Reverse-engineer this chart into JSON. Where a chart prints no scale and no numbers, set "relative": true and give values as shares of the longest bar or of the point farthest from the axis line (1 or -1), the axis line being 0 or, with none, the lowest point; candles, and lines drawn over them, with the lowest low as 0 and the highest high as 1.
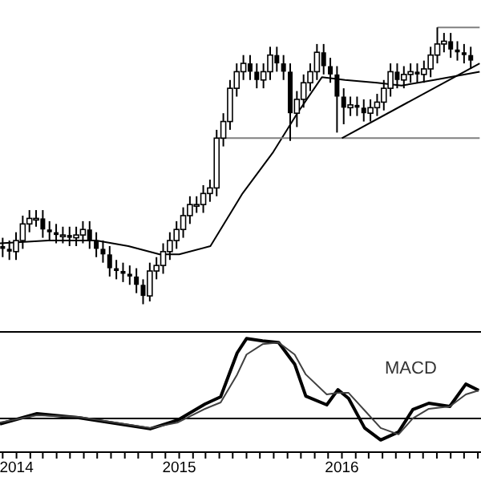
{
  "chart_data": [
    {
      "type": "candlestick",
      "relative": true,
      "color": "#000000",
      "tick_labels": false,
      "xlim": [
        "2013-11-25",
        "2016-11-08"
      ],
      "x": [
        "2013-12-01",
        "2013-12-16",
        "2013-12-31",
        "2014-01-15",
        "2014-01-30",
        "2014-02-14",
        "2014-03-01",
        "2014-03-16",
        "2014-03-31",
        "2014-04-15",
        "2014-04-30",
        "2014-05-15",
        "2014-05-30",
        "2014-06-14",
        "2014-06-29",
        "2014-07-14",
        "2014-07-29",
        "2014-08-13",
        "2014-08-28",
        "2014-09-12",
        "2014-09-27",
        "2014-10-12",
        "2014-10-27",
        "2014-11-11",
        "2014-11-26",
        "2014-12-11",
        "2014-12-26",
        "2015-01-10",
        "2015-01-25",
        "2015-02-09",
        "2015-02-24",
        "2015-03-11",
        "2015-03-26",
        "2015-04-10",
        "2015-04-25",
        "2015-05-10",
        "2015-05-25",
        "2015-06-09",
        "2015-06-24",
        "2015-07-09",
        "2015-07-24",
        "2015-08-08",
        "2015-08-23",
        "2015-09-07",
        "2015-09-22",
        "2015-10-07",
        "2015-10-22",
        "2015-11-06",
        "2015-11-21",
        "2015-12-06",
        "2015-12-21",
        "2016-01-05",
        "2016-01-20",
        "2016-02-04",
        "2016-02-19",
        "2016-03-05",
        "2016-03-20",
        "2016-04-04",
        "2016-04-19",
        "2016-05-04",
        "2016-05-19",
        "2016-06-03",
        "2016-06-18",
        "2016-07-03",
        "2016-07-18",
        "2016-08-02",
        "2016-08-17",
        "2016-09-01",
        "2016-09-16",
        "2016-10-01",
        "2016-10-16"
      ],
      "ohlc": [
        [
          0.21,
          0.24,
          0.17,
          0.2
        ],
        [
          0.2,
          0.23,
          0.16,
          0.19
        ],
        [
          0.19,
          0.26,
          0.16,
          0.23
        ],
        [
          0.23,
          0.32,
          0.2,
          0.29
        ],
        [
          0.29,
          0.34,
          0.26,
          0.31
        ],
        [
          0.31,
          0.34,
          0.28,
          0.31
        ],
        [
          0.31,
          0.34,
          0.24,
          0.27
        ],
        [
          0.27,
          0.3,
          0.23,
          0.26
        ],
        [
          0.26,
          0.29,
          0.22,
          0.25
        ],
        [
          0.25,
          0.28,
          0.22,
          0.25
        ],
        [
          0.25,
          0.28,
          0.21,
          0.24
        ],
        [
          0.24,
          0.28,
          0.21,
          0.25
        ],
        [
          0.25,
          0.3,
          0.22,
          0.27
        ],
        [
          0.27,
          0.3,
          0.2,
          0.23
        ],
        [
          0.23,
          0.26,
          0.17,
          0.2
        ],
        [
          0.2,
          0.23,
          0.15,
          0.18
        ],
        [
          0.18,
          0.21,
          0.1,
          0.13
        ],
        [
          0.13,
          0.16,
          0.09,
          0.12
        ],
        [
          0.12,
          0.15,
          0.08,
          0.11
        ],
        [
          0.11,
          0.14,
          0.07,
          0.1
        ],
        [
          0.1,
          0.13,
          0.04,
          0.07
        ],
        [
          0.07,
          0.09,
          0.0,
          0.03
        ],
        [
          0.03,
          0.15,
          0.01,
          0.12
        ],
        [
          0.12,
          0.17,
          0.09,
          0.14
        ],
        [
          0.14,
          0.22,
          0.11,
          0.19
        ],
        [
          0.19,
          0.26,
          0.16,
          0.23
        ],
        [
          0.23,
          0.3,
          0.2,
          0.27
        ],
        [
          0.27,
          0.35,
          0.24,
          0.32
        ],
        [
          0.32,
          0.39,
          0.29,
          0.36
        ],
        [
          0.36,
          0.39,
          0.33,
          0.36
        ],
        [
          0.36,
          0.43,
          0.33,
          0.4
        ],
        [
          0.4,
          0.45,
          0.37,
          0.42
        ],
        [
          0.42,
          0.63,
          0.39,
          0.6
        ],
        [
          0.6,
          0.69,
          0.57,
          0.66
        ],
        [
          0.66,
          0.81,
          0.63,
          0.78
        ],
        [
          0.78,
          0.87,
          0.75,
          0.84
        ],
        [
          0.84,
          0.9,
          0.81,
          0.87
        ],
        [
          0.87,
          0.9,
          0.81,
          0.84
        ],
        [
          0.84,
          0.87,
          0.78,
          0.81
        ],
        [
          0.81,
          0.87,
          0.78,
          0.84
        ],
        [
          0.84,
          0.93,
          0.81,
          0.9
        ],
        [
          0.9,
          0.93,
          0.84,
          0.87
        ],
        [
          0.87,
          0.9,
          0.81,
          0.84
        ],
        [
          0.84,
          0.87,
          0.59,
          0.69
        ],
        [
          0.69,
          0.77,
          0.64,
          0.74
        ],
        [
          0.74,
          0.83,
          0.71,
          0.8
        ],
        [
          0.8,
          0.87,
          0.77,
          0.84
        ],
        [
          0.84,
          0.94,
          0.81,
          0.91
        ],
        [
          0.91,
          0.94,
          0.83,
          0.86
        ],
        [
          0.86,
          0.89,
          0.8,
          0.83
        ],
        [
          0.83,
          0.86,
          0.62,
          0.75
        ],
        [
          0.75,
          0.78,
          0.65,
          0.71
        ],
        [
          0.71,
          0.75,
          0.68,
          0.72
        ],
        [
          0.72,
          0.75,
          0.68,
          0.71
        ],
        [
          0.71,
          0.74,
          0.66,
          0.69
        ],
        [
          0.69,
          0.74,
          0.66,
          0.71
        ],
        [
          0.71,
          0.76,
          0.68,
          0.73
        ],
        [
          0.73,
          0.81,
          0.7,
          0.78
        ],
        [
          0.78,
          0.87,
          0.75,
          0.84
        ],
        [
          0.84,
          0.87,
          0.78,
          0.81
        ],
        [
          0.81,
          0.86,
          0.78,
          0.83
        ],
        [
          0.83,
          0.87,
          0.8,
          0.84
        ],
        [
          0.84,
          0.87,
          0.8,
          0.83
        ],
        [
          0.83,
          0.88,
          0.8,
          0.85
        ],
        [
          0.85,
          0.93,
          0.82,
          0.9
        ],
        [
          0.9,
          1.0,
          0.87,
          0.94
        ],
        [
          0.94,
          0.98,
          0.91,
          0.95
        ],
        [
          0.95,
          0.98,
          0.89,
          0.92
        ],
        [
          0.92,
          0.95,
          0.88,
          0.91
        ],
        [
          0.91,
          0.94,
          0.87,
          0.9
        ],
        [
          0.9,
          0.93,
          0.85,
          0.88
        ]
      ],
      "series": [
        {
          "type": "line",
          "color": "#000000",
          "x": [
            "2013-11-25",
            "2014-03-13",
            "2014-06-29",
            "2014-09-09",
            "2014-11-18",
            "2015-01-01",
            "2015-03-12",
            "2015-05-23",
            "2015-07-31",
            "2015-09-23",
            "2015-11-17",
            "2016-01-08",
            "2016-03-20",
            "2016-05-14",
            "2016-07-26",
            "2016-11-05"
          ],
          "values": [
            0.22,
            0.23,
            0.23,
            0.21,
            0.18,
            0.18,
            0.21,
            0.4,
            0.55,
            0.69,
            0.82,
            0.81,
            0.8,
            0.79,
            0.81,
            0.84
          ]
        },
        {
          "type": "line",
          "color": "#808080",
          "x": [
            "2015-03-31",
            "2016-11-05"
          ],
          "values": [
            0.6,
            0.6
          ]
        },
        {
          "type": "line",
          "color": "#000000",
          "x": [
            "2016-01-01",
            "2016-11-05"
          ],
          "values": [
            0.6,
            0.87
          ]
        },
        {
          "type": "line",
          "color": "#808080",
          "x": [
            "2016-08-02",
            "2016-11-05"
          ],
          "values": [
            1.0,
            1.0
          ]
        }
      ]
    },
    {
      "type": "line",
      "relative": true,
      "tick_labels": "x",
      "annotations": [
        "MACD"
      ],
      "xlim": [
        "2013-11-25",
        "2016-11-08"
      ],
      "xticks": [
        {
          "value": "2013-12-01",
          "label": null
        },
        {
          "value": "2014-01-01",
          "label": "2014"
        },
        {
          "value": "2014-02-01",
          "label": null
        },
        {
          "value": "2014-03-01",
          "label": null
        },
        {
          "value": "2014-04-01",
          "label": null
        },
        {
          "value": "2014-05-01",
          "label": null
        },
        {
          "value": "2014-06-01",
          "label": null
        },
        {
          "value": "2014-07-01",
          "label": null
        },
        {
          "value": "2014-08-01",
          "label": null
        },
        {
          "value": "2014-09-01",
          "label": null
        },
        {
          "value": "2014-10-01",
          "label": null
        },
        {
          "value": "2014-11-01",
          "label": null
        },
        {
          "value": "2014-12-01",
          "label": null
        },
        {
          "value": "2015-01-01",
          "label": "2015"
        },
        {
          "value": "2015-02-01",
          "label": null
        },
        {
          "value": "2015-03-01",
          "label": null
        },
        {
          "value": "2015-04-01",
          "label": null
        },
        {
          "value": "2015-05-01",
          "label": null
        },
        {
          "value": "2015-06-01",
          "label": null
        },
        {
          "value": "2015-07-01",
          "label": null
        },
        {
          "value": "2015-08-01",
          "label": null
        },
        {
          "value": "2015-09-01",
          "label": null
        },
        {
          "value": "2015-10-01",
          "label": null
        },
        {
          "value": "2015-11-01",
          "label": null
        },
        {
          "value": "2015-12-01",
          "label": null
        },
        {
          "value": "2016-01-01",
          "label": "2016"
        },
        {
          "value": "2016-02-01",
          "label": null
        },
        {
          "value": "2016-03-01",
          "label": null
        },
        {
          "value": "2016-04-01",
          "label": null
        },
        {
          "value": "2016-05-01",
          "label": null
        },
        {
          "value": "2016-06-01",
          "label": null
        },
        {
          "value": "2016-07-01",
          "label": null
        },
        {
          "value": "2016-08-01",
          "label": null
        },
        {
          "value": "2016-09-01",
          "label": null
        },
        {
          "value": "2016-10-01",
          "label": null
        },
        {
          "value": "2016-11-01",
          "label": null
        }
      ],
      "ref_lines": [
        {
          "axis": "y",
          "value": 0,
          "color": "#000000"
        }
      ],
      "x": [
        "2013-11-25",
        "2014-02-16",
        "2014-05-20",
        "2014-10-28",
        "2014-12-29",
        "2015-02-28",
        "2015-04-04",
        "2015-05-11",
        "2015-06-01",
        "2015-07-07",
        "2015-08-12",
        "2015-09-17",
        "2015-10-12",
        "2015-11-28",
        "2015-12-23",
        "2016-01-16",
        "2016-02-21",
        "2016-03-28",
        "2016-05-07",
        "2016-06-08",
        "2016-07-14",
        "2016-08-30",
        "2016-10-05",
        "2016-11-03"
      ],
      "series": [
        {
          "color": "#000000",
          "values": [
            -0.07,
            0.06,
            0.01,
            -0.13,
            -0.02,
            0.18,
            0.27,
            0.82,
            1.0,
            0.97,
            0.95,
            0.68,
            0.28,
            0.17,
            0.36,
            0.25,
            -0.12,
            -0.27,
            -0.17,
            0.11,
            0.19,
            0.15,
            0.43,
            0.35
          ]
        },
        {
          "color": "#404040",
          "values": [
            -0.05,
            0.04,
            0.02,
            -0.12,
            -0.05,
            0.12,
            0.2,
            0.55,
            0.8,
            0.93,
            0.95,
            0.8,
            0.55,
            0.3,
            0.32,
            0.32,
            0.1,
            -0.12,
            -0.2,
            0.0,
            0.12,
            0.15,
            0.3,
            0.35
          ]
        }
      ]
    }
  ]
}
